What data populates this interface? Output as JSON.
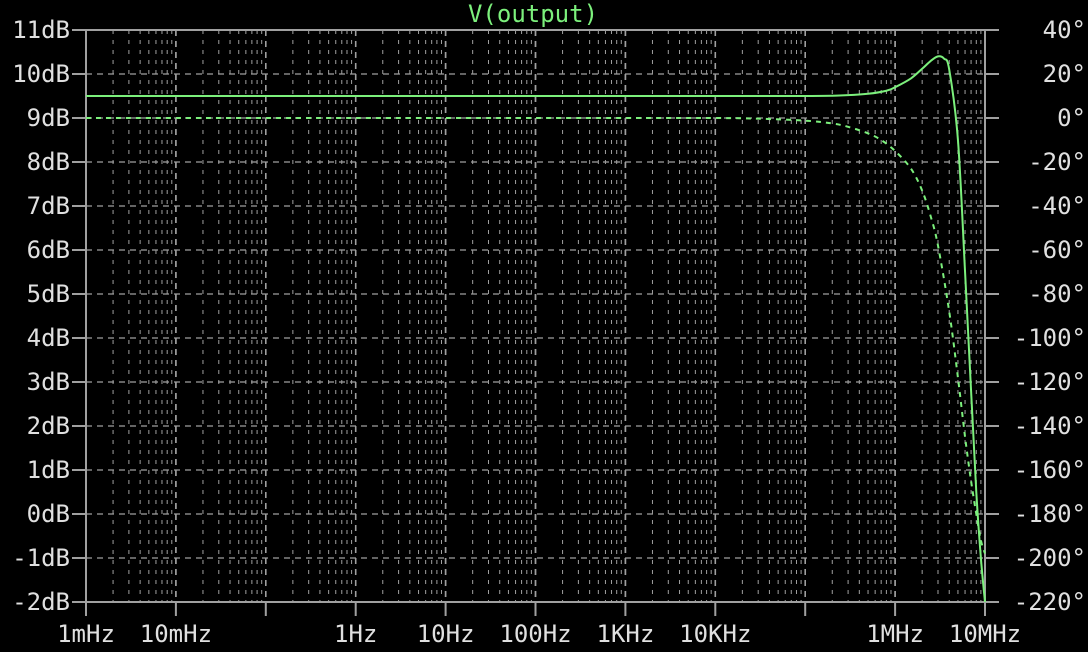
{
  "chart_data": {
    "type": "line",
    "title": "V(output)",
    "x_scale": "log",
    "x_unit": "Hz",
    "xlim": [
      0.001,
      10000000
    ],
    "x_tick_labels": [
      {
        "value": 0.001,
        "label": "1mHz"
      },
      {
        "value": 0.01,
        "label": "10mHz"
      },
      {
        "value": 1,
        "label": "1Hz"
      },
      {
        "value": 10,
        "label": "10Hz"
      },
      {
        "value": 100,
        "label": "100Hz"
      },
      {
        "value": 1000,
        "label": "1KHz"
      },
      {
        "value": 10000,
        "label": "10KHz"
      },
      {
        "value": 1000000,
        "label": "1MHz"
      },
      {
        "value": 10000000,
        "label": "10MHz"
      }
    ],
    "y_left": {
      "unit": "dB",
      "lim": [
        -2,
        11
      ],
      "ticks": [
        -2,
        -1,
        0,
        1,
        2,
        3,
        4,
        5,
        6,
        7,
        8,
        9,
        10,
        11
      ],
      "tick_labels": [
        "-2dB",
        "-1dB",
        "0dB",
        "1dB",
        "2dB",
        "3dB",
        "4dB",
        "5dB",
        "6dB",
        "7dB",
        "8dB",
        "9dB",
        "10dB",
        "11dB"
      ]
    },
    "y_right": {
      "unit": "degrees",
      "lim": [
        -220,
        40
      ],
      "ticks": [
        -220,
        -200,
        -180,
        -160,
        -140,
        -120,
        -100,
        -80,
        -60,
        -40,
        -20,
        0,
        20,
        40
      ],
      "tick_labels": [
        "-220°",
        "-200°",
        "-180°",
        "-160°",
        "-140°",
        "-120°",
        "-100°",
        "-80°",
        "-60°",
        "-40°",
        "-20°",
        "0°",
        "20°",
        "40°"
      ]
    },
    "grid": true,
    "colors": {
      "background": "#000000",
      "frame": "#a0a0a0",
      "grid": "#a0a0a0",
      "trace": "#7cf07c",
      "text": "#e0e0e0"
    },
    "series": [
      {
        "axis": "left",
        "style": "solid",
        "x": [
          0.001,
          1,
          1000,
          100000,
          300000,
          500000,
          800000,
          1000000,
          1500000,
          2000000,
          2500000,
          3000000,
          3500000,
          4000000,
          5000000,
          6000000,
          7000000,
          8000000,
          9000000,
          10000000
        ],
        "y": [
          9.5,
          9.5,
          9.5,
          9.5,
          9.52,
          9.55,
          9.62,
          9.7,
          9.9,
          10.12,
          10.3,
          10.4,
          10.35,
          10.1,
          8.5,
          5.5,
          2.8,
          0.5,
          -1.0,
          -2.0
        ]
      },
      {
        "axis": "right",
        "style": "dashed",
        "x": [
          0.001,
          1,
          1000,
          10000,
          30000,
          100000,
          200000,
          300000,
          500000,
          700000,
          1000000,
          1500000,
          2000000,
          2500000,
          3000000,
          4000000,
          5000000,
          6000000,
          7000000,
          8000000,
          9000000,
          10000000
        ],
        "y": [
          0,
          0,
          0,
          0,
          -0.3,
          -1.2,
          -2.5,
          -4,
          -7,
          -10,
          -15,
          -23,
          -33,
          -45,
          -58,
          -88,
          -118,
          -145,
          -165,
          -180,
          -192,
          -198
        ]
      }
    ]
  }
}
